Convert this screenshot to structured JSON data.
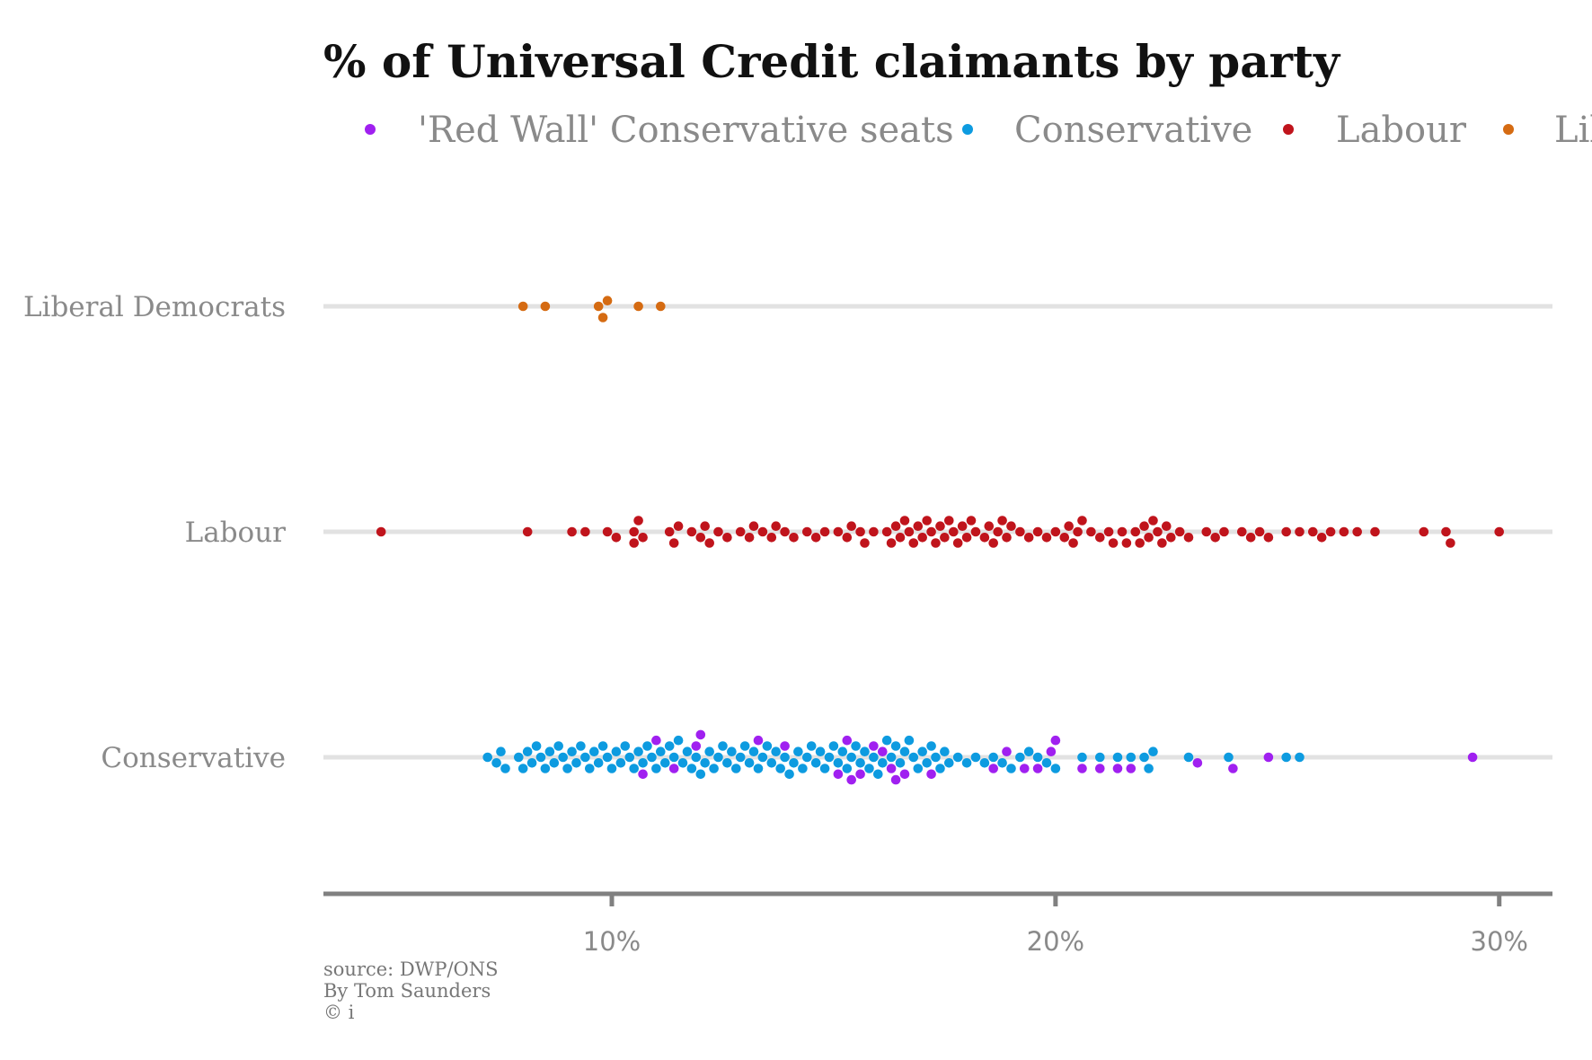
{
  "chart_data": {
    "type": "scatter",
    "subtype": "beeswarm",
    "title": "% of Universal Credit claimants by party",
    "xlim": [
      3.5,
      31.2
    ],
    "x_ticks": [
      10,
      20,
      30
    ],
    "x_tick_labels": [
      "10%",
      "20%",
      "30%"
    ],
    "legend_position": "top",
    "legend": [
      {
        "name": "'Red Wall' Conservative seats",
        "color": "#a020f0"
      },
      {
        "name": "Conservative",
        "color": "#0d9be0"
      },
      {
        "name": "Labour",
        "color": "#c0141c"
      },
      {
        "name": "Liberal Democrats",
        "color": "#d56b12"
      }
    ],
    "categories": [
      "Liberal Democrats",
      "Labour",
      "Conservative"
    ],
    "series": [
      {
        "name": "Liberal Democrats",
        "row": "Liberal Democrats",
        "color": "#d56b12",
        "values": [
          8.0,
          8.5,
          9.7,
          9.8,
          9.9,
          10.6,
          11.1
        ]
      },
      {
        "name": "Labour",
        "row": "Labour",
        "color": "#c0141c",
        "values": [
          4.8,
          8.1,
          9.1,
          9.4,
          9.9,
          10.1,
          10.5,
          10.5,
          10.6,
          10.7,
          11.3,
          11.4,
          11.5,
          11.8,
          12.0,
          12.1,
          12.2,
          12.4,
          12.6,
          12.9,
          13.1,
          13.2,
          13.4,
          13.6,
          13.7,
          13.9,
          14.1,
          14.4,
          14.6,
          14.8,
          15.1,
          15.3,
          15.4,
          15.6,
          15.7,
          15.9,
          16.2,
          16.3,
          16.4,
          16.5,
          16.6,
          16.7,
          16.8,
          16.9,
          17.0,
          17.1,
          17.2,
          17.3,
          17.4,
          17.5,
          17.6,
          17.7,
          17.8,
          17.9,
          18.0,
          18.1,
          18.2,
          18.4,
          18.5,
          18.6,
          18.7,
          18.8,
          18.9,
          19.0,
          19.2,
          19.4,
          19.6,
          19.8,
          20.0,
          20.2,
          20.3,
          20.4,
          20.5,
          20.6,
          20.8,
          21.0,
          21.2,
          21.3,
          21.5,
          21.6,
          21.8,
          21.9,
          22.0,
          22.1,
          22.2,
          22.3,
          22.4,
          22.5,
          22.6,
          22.8,
          23.0,
          23.4,
          23.6,
          23.8,
          24.2,
          24.4,
          24.6,
          24.8,
          25.2,
          25.5,
          25.8,
          26.0,
          26.2,
          26.5,
          26.8,
          27.2,
          28.3,
          28.8,
          28.9,
          30.0
        ]
      },
      {
        "name": "Conservative",
        "row": "Conservative",
        "color": "#0d9be0",
        "values": [
          7.2,
          7.4,
          7.5,
          7.6,
          7.9,
          8.0,
          8.1,
          8.2,
          8.3,
          8.4,
          8.5,
          8.6,
          8.7,
          8.8,
          8.9,
          9.0,
          9.1,
          9.2,
          9.3,
          9.4,
          9.5,
          9.6,
          9.7,
          9.8,
          9.9,
          10.0,
          10.1,
          10.2,
          10.3,
          10.4,
          10.5,
          10.6,
          10.7,
          10.8,
          10.9,
          11.0,
          11.1,
          11.2,
          11.3,
          11.4,
          11.5,
          11.6,
          11.7,
          11.8,
          11.9,
          12.0,
          12.1,
          12.2,
          12.3,
          12.4,
          12.5,
          12.6,
          12.7,
          12.8,
          12.9,
          13.0,
          13.1,
          13.2,
          13.3,
          13.4,
          13.5,
          13.6,
          13.7,
          13.8,
          13.9,
          14.0,
          14.1,
          14.2,
          14.3,
          14.4,
          14.5,
          14.6,
          14.7,
          14.8,
          14.9,
          15.0,
          15.1,
          15.2,
          15.3,
          15.4,
          15.5,
          15.6,
          15.7,
          15.8,
          15.9,
          16.0,
          16.1,
          16.2,
          16.3,
          16.4,
          16.5,
          16.6,
          16.7,
          16.8,
          16.9,
          17.0,
          17.1,
          17.2,
          17.3,
          17.4,
          17.5,
          17.6,
          17.8,
          18.0,
          18.2,
          18.4,
          18.6,
          18.8,
          19.0,
          19.2,
          19.4,
          19.6,
          19.8,
          20.0,
          20.6,
          21.0,
          21.4,
          21.7,
          22.0,
          22.1,
          22.2,
          23.0,
          23.9,
          25.2,
          25.5
        ]
      },
      {
        "name": "'Red Wall' Conservative seats",
        "row": "Conservative",
        "color": "#a020f0",
        "values": [
          10.7,
          11.0,
          11.4,
          11.9,
          12.0,
          13.3,
          13.9,
          15.1,
          15.3,
          15.4,
          15.6,
          15.9,
          16.1,
          16.3,
          16.4,
          16.6,
          17.2,
          18.6,
          18.9,
          19.3,
          19.6,
          19.9,
          20.0,
          20.6,
          21.0,
          21.4,
          21.7,
          23.2,
          24.0,
          24.8,
          29.4
        ]
      }
    ],
    "annotations": [
      "source: DWP/ONS",
      "By Tom Saunders",
      "© i"
    ]
  }
}
